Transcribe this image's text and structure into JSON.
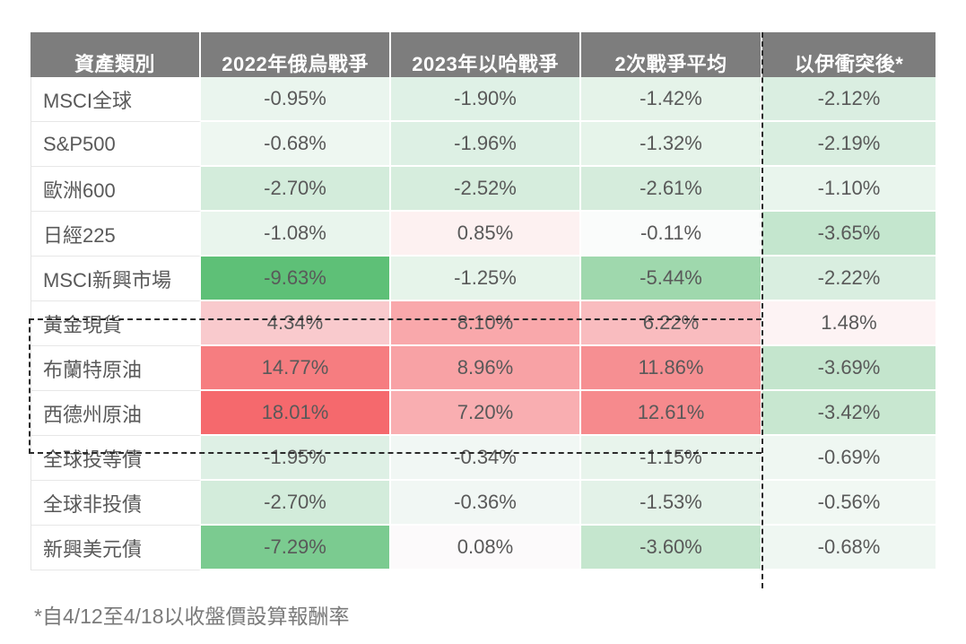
{
  "table": {
    "columns": [
      "資產類別",
      "2022年俄烏戰爭",
      "2023年以哈戰爭",
      "2次戰爭平均",
      "以伊衝突後*"
    ],
    "rows": [
      {
        "label": "MSCI全球",
        "values": [
          "-0.95%",
          "-1.90%",
          "-1.42%",
          "-2.12%"
        ],
        "colors": [
          "#eaf5ee",
          "#dff1e6",
          "#e5f3e9",
          "#daeee1"
        ]
      },
      {
        "label": "S&P500",
        "values": [
          "-0.68%",
          "-1.96%",
          "-1.32%",
          "-2.19%"
        ],
        "colors": [
          "#eef7f1",
          "#ddf0e4",
          "#e6f4ea",
          "#d9eee0"
        ]
      },
      {
        "label": "歐洲600",
        "values": [
          "-2.70%",
          "-2.52%",
          "-2.61%",
          "-1.10%"
        ],
        "colors": [
          "#d3ecdb",
          "#d6eddd",
          "#d5ecdc",
          "#e9f5ed"
        ]
      },
      {
        "label": "日經225",
        "values": [
          "-1.08%",
          "0.85%",
          "-0.11%",
          "-3.65%"
        ],
        "colors": [
          "#e9f5ed",
          "#fdf1f1",
          "#fafcfb",
          "#c4e6ce"
        ]
      },
      {
        "label": "MSCI新興市場",
        "values": [
          "-9.63%",
          "-1.25%",
          "-5.44%",
          "-2.22%"
        ],
        "colors": [
          "#5ec077",
          "#e6f4ea",
          "#9fd8ad",
          "#d9eee0"
        ]
      },
      {
        "label": "黃金現貨",
        "values": [
          "4.34%",
          "8.10%",
          "6.22%",
          "1.48%"
        ],
        "colors": [
          "#f9cacd",
          "#f9a8ab",
          "#f9bcbf",
          "#fdf3f4"
        ]
      },
      {
        "label": "布蘭特原油",
        "values": [
          "14.77%",
          "8.96%",
          "11.86%",
          "-3.69%"
        ],
        "colors": [
          "#f67d80",
          "#f8a2a5",
          "#f68f92",
          "#c4e5cd"
        ]
      },
      {
        "label": "西德州原油",
        "values": [
          "18.01%",
          "7.20%",
          "12.61%",
          "-3.42%"
        ],
        "colors": [
          "#f5696d",
          "#f9aeb1",
          "#f68a8d",
          "#c8e7d0"
        ]
      },
      {
        "label": "全球投等債",
        "values": [
          "-1.95%",
          "-0.34%",
          "-1.15%",
          "-0.69%"
        ],
        "colors": [
          "#def0e5",
          "#f1f7f4",
          "#e8f4ec",
          "#eff7f2"
        ]
      },
      {
        "label": "全球非投債",
        "values": [
          "-2.70%",
          "-0.36%",
          "-1.53%",
          "-0.56%"
        ],
        "colors": [
          "#d3ecdb",
          "#f1f7f4",
          "#e3f2e8",
          "#f1f8f3"
        ]
      },
      {
        "label": "新興美元債",
        "values": [
          "-7.29%",
          "0.08%",
          "-3.60%",
          "-0.68%"
        ],
        "colors": [
          "#7bcb90",
          "#fcfafb",
          "#c5e6ce",
          "#eff7f2"
        ]
      }
    ]
  },
  "footnote": "*自4/12至4/18以收盤價設算報酬率",
  "palette": {
    "header_bg": "#7d7d7d",
    "header_text": "#ffffff",
    "cell_text": "#595959",
    "footnote_text": "#7a7a7a",
    "dashed_line": "#2a2a2a",
    "strongest_negative_green": "#5ec077",
    "strongest_positive_red": "#f5696d"
  },
  "chart_data": {
    "type": "table",
    "title": "",
    "row_header": "資產類別",
    "categories": [
      "MSCI全球",
      "S&P500",
      "歐洲600",
      "日經225",
      "MSCI新興市場",
      "黃金現貨",
      "布蘭特原油",
      "西德州原油",
      "全球投等債",
      "全球非投債",
      "新興美元債"
    ],
    "series": [
      {
        "name": "2022年俄烏戰爭",
        "values": [
          -0.95,
          -0.68,
          -2.7,
          -1.08,
          -9.63,
          4.34,
          14.77,
          18.01,
          -1.95,
          -2.7,
          -7.29
        ]
      },
      {
        "name": "2023年以哈戰爭",
        "values": [
          -1.9,
          -1.96,
          -2.52,
          0.85,
          -1.25,
          8.1,
          8.96,
          7.2,
          -0.34,
          -0.36,
          0.08
        ]
      },
      {
        "name": "2次戰爭平均",
        "values": [
          -1.42,
          -1.32,
          -2.61,
          -0.11,
          -5.44,
          6.22,
          11.86,
          12.61,
          -1.15,
          -1.53,
          -3.6
        ]
      },
      {
        "name": "以伊衝突後*",
        "values": [
          -2.12,
          -2.19,
          -1.1,
          -3.65,
          -2.22,
          1.48,
          -3.69,
          -3.42,
          -0.69,
          -0.56,
          -0.68
        ]
      }
    ],
    "units": "percent",
    "color_coding": "diverging scale: positive returns shaded red (darker = larger), negative returns shaded green (darker = more negative)",
    "highlighted_rows_dashed_box": [
      "黃金現貨",
      "布蘭特原油",
      "西德州原油"
    ],
    "dashed_separator_before_column": "以伊衝突後*",
    "note": "*自4/12至4/18以收盤價設算報酬率"
  }
}
